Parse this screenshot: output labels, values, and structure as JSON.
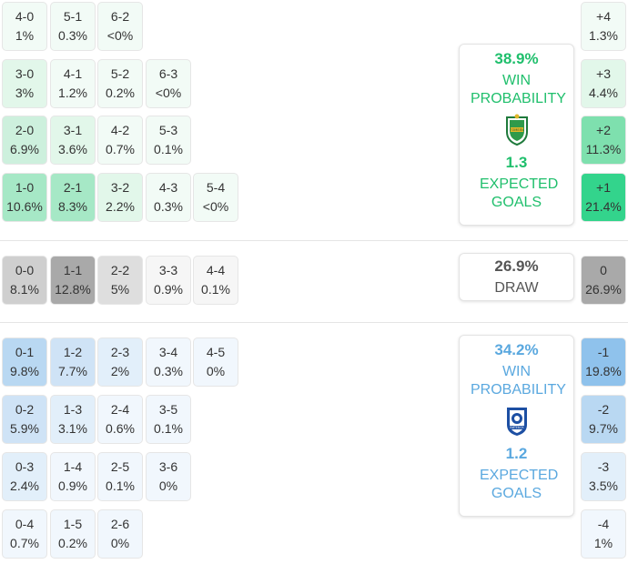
{
  "home": {
    "win_probability": "38.9%",
    "win_label": "WIN PROBABILITY",
    "expected_goals": "1.3",
    "xg_label": "EXPECTED GOALS",
    "crest_text": "ГОМЕЛЬ"
  },
  "draw": {
    "probability": "26.9%",
    "label": "DRAW"
  },
  "away": {
    "win_probability": "34.2%",
    "win_label": "WIN PROBABILITY",
    "expected_goals": "1.2",
    "xg_label": "EXPECTED GOALS",
    "crest_text": "ВИТЕБСК"
  },
  "home_scores": [
    [
      {
        "s": "4-0",
        "p": "1%"
      },
      {
        "s": "5-1",
        "p": "0.3%"
      },
      {
        "s": "6-2",
        "p": "<0%"
      }
    ],
    [
      {
        "s": "3-0",
        "p": "3%"
      },
      {
        "s": "4-1",
        "p": "1.2%"
      },
      {
        "s": "5-2",
        "p": "0.2%"
      },
      {
        "s": "6-3",
        "p": "<0%"
      }
    ],
    [
      {
        "s": "2-0",
        "p": "6.9%"
      },
      {
        "s": "3-1",
        "p": "3.6%"
      },
      {
        "s": "4-2",
        "p": "0.7%"
      },
      {
        "s": "5-3",
        "p": "0.1%"
      }
    ],
    [
      {
        "s": "1-0",
        "p": "10.6%"
      },
      {
        "s": "2-1",
        "p": "8.3%"
      },
      {
        "s": "3-2",
        "p": "2.2%"
      },
      {
        "s": "4-3",
        "p": "0.3%"
      },
      {
        "s": "5-4",
        "p": "<0%"
      }
    ]
  ],
  "draw_scores": [
    [
      {
        "s": "0-0",
        "p": "8.1%"
      },
      {
        "s": "1-1",
        "p": "12.8%"
      },
      {
        "s": "2-2",
        "p": "5%"
      },
      {
        "s": "3-3",
        "p": "0.9%"
      },
      {
        "s": "4-4",
        "p": "0.1%"
      }
    ]
  ],
  "away_scores": [
    [
      {
        "s": "0-1",
        "p": "9.8%"
      },
      {
        "s": "1-2",
        "p": "7.7%"
      },
      {
        "s": "2-3",
        "p": "2%"
      },
      {
        "s": "3-4",
        "p": "0.3%"
      },
      {
        "s": "4-5",
        "p": "0%"
      }
    ],
    [
      {
        "s": "0-2",
        "p": "5.9%"
      },
      {
        "s": "1-3",
        "p": "3.1%"
      },
      {
        "s": "2-4",
        "p": "0.6%"
      },
      {
        "s": "3-5",
        "p": "0.1%"
      }
    ],
    [
      {
        "s": "0-3",
        "p": "2.4%"
      },
      {
        "s": "1-4",
        "p": "0.9%"
      },
      {
        "s": "2-5",
        "p": "0.1%"
      },
      {
        "s": "3-6",
        "p": "0%"
      }
    ],
    [
      {
        "s": "0-4",
        "p": "0.7%"
      },
      {
        "s": "1-5",
        "p": "0.2%"
      },
      {
        "s": "2-6",
        "p": "0%"
      }
    ]
  ],
  "margins_home": [
    {
      "s": "+4",
      "p": "1.3%"
    },
    {
      "s": "+3",
      "p": "4.4%"
    },
    {
      "s": "+2",
      "p": "11.3%"
    },
    {
      "s": "+1",
      "p": "21.4%"
    }
  ],
  "margins_draw": [
    {
      "s": "0",
      "p": "26.9%"
    }
  ],
  "margins_away": [
    {
      "s": "-1",
      "p": "19.8%"
    },
    {
      "s": "-2",
      "p": "9.7%"
    },
    {
      "s": "-3",
      "p": "3.5%"
    },
    {
      "s": "-4",
      "p": "1%"
    }
  ],
  "colors": {
    "home_levels": [
      "#f2fbf6",
      "#e2f7ea",
      "#cdf0dd",
      "#a6e8c6",
      "#7ee0ae",
      "#33d48c"
    ],
    "draw_levels": [
      "#f6f6f6",
      "#ececec",
      "#dedede",
      "#cfcfcf",
      "#a9a9a9"
    ],
    "away_levels": [
      "#f1f7fd",
      "#e2effa",
      "#cfe3f6",
      "#b9d8f2",
      "#a9cfef",
      "#8fc2ec"
    ]
  }
}
